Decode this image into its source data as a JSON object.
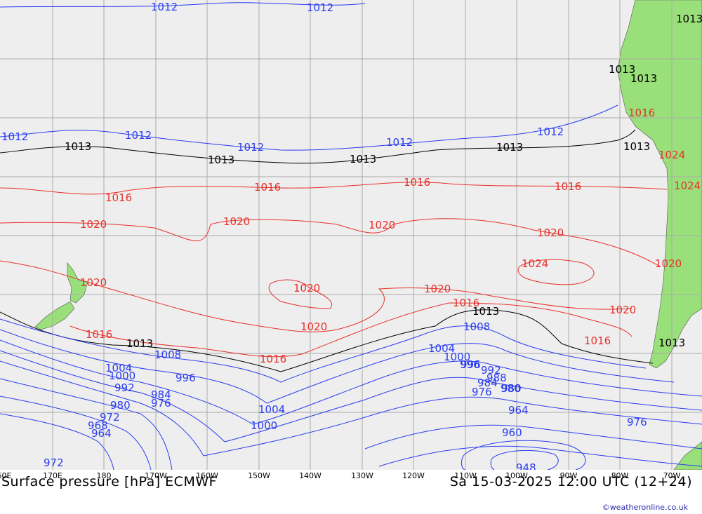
{
  "map": {
    "product": "Surface pressure [hPa] ECMWF",
    "valid_time": "Sa 15-03-2025 12:00 UTC (12+24)",
    "credit": "©weatheronline.co.uk",
    "colors": {
      "sea": "#eeeeee",
      "land": "#99e07a",
      "grid": "#aaaaaa",
      "low": "#2a3cf0",
      "normal": "#000000",
      "high": "#e8302a"
    },
    "longitude_ticks": [
      "60E",
      "170E",
      "180",
      "170W",
      "160W",
      "150W",
      "140W",
      "130W",
      "120W",
      "110W",
      "100W",
      "90W",
      "80W",
      "70W"
    ],
    "isobar_labels": [
      "1012",
      "1012",
      "1012",
      "1012",
      "1012",
      "1012",
      "1012",
      "1013",
      "1013",
      "1013",
      "1013",
      "1013",
      "1013",
      "1013",
      "1013",
      "1013",
      "1013",
      "1013",
      "1016",
      "1016",
      "1016",
      "1016",
      "1016",
      "1016",
      "1016",
      "1016",
      "1016",
      "1020",
      "1020",
      "1020",
      "1020",
      "1020",
      "1020",
      "1020",
      "1020",
      "1020",
      "1020",
      "1024",
      "1024",
      "1024",
      "1008",
      "1008",
      "1004",
      "1004",
      "1004",
      "1000",
      "1000",
      "1000",
      "996",
      "996",
      "996",
      "992",
      "992",
      "988",
      "984",
      "984",
      "980",
      "980",
      "980",
      "976",
      "976",
      "976",
      "972",
      "972",
      "968",
      "964",
      "964",
      "960",
      "948"
    ]
  }
}
